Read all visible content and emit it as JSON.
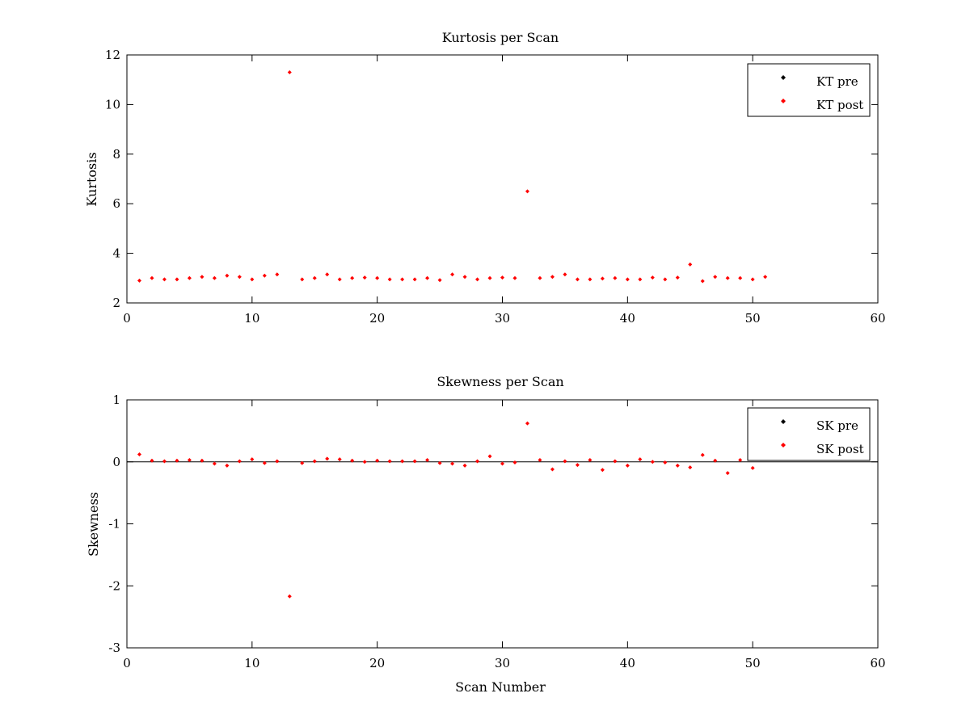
{
  "colors": {
    "pre": "#000000",
    "post": "#ff0000",
    "axes": "#000000",
    "background": "#ffffff"
  },
  "chart_data": [
    {
      "type": "scatter",
      "title": "Kurtosis per Scan",
      "xlabel": "",
      "ylabel": "Kurtosis",
      "xlim": [
        0,
        60
      ],
      "ylim": [
        2,
        12
      ],
      "xticks": [
        0,
        10,
        20,
        30,
        40,
        50,
        60
      ],
      "yticks": [
        2,
        4,
        6,
        8,
        10,
        12
      ],
      "grid": false,
      "legend_position": "top-right",
      "series": [
        {
          "name": "KT pre",
          "color": "#000000",
          "x": [],
          "y": []
        },
        {
          "name": "KT post",
          "color": "#ff0000",
          "x": [
            1,
            2,
            3,
            4,
            5,
            6,
            7,
            8,
            9,
            10,
            11,
            12,
            13,
            14,
            15,
            16,
            17,
            18,
            19,
            20,
            21,
            22,
            23,
            24,
            25,
            26,
            27,
            28,
            29,
            30,
            31,
            32,
            33,
            34,
            35,
            36,
            37,
            38,
            39,
            40,
            41,
            42,
            43,
            44,
            45,
            46,
            47,
            48,
            49,
            50,
            51
          ],
          "y": [
            2.9,
            3.0,
            2.95,
            2.95,
            3.0,
            3.05,
            3.0,
            3.1,
            3.05,
            2.95,
            3.1,
            3.15,
            11.3,
            2.95,
            3.0,
            3.15,
            2.95,
            3.0,
            3.02,
            3.0,
            2.95,
            2.95,
            2.95,
            3.0,
            2.92,
            3.15,
            3.05,
            2.95,
            3.0,
            3.02,
            3.0,
            6.5,
            3.0,
            3.05,
            3.15,
            2.95,
            2.95,
            2.98,
            3.0,
            2.95,
            2.95,
            3.02,
            2.95,
            3.02,
            3.55,
            2.88,
            3.05,
            3.0,
            3.0,
            2.95,
            3.05
          ]
        }
      ]
    },
    {
      "type": "scatter",
      "title": "Skewness per Scan",
      "xlabel": "Scan Number",
      "ylabel": "Skewness",
      "xlim": [
        0,
        60
      ],
      "ylim": [
        -3,
        1
      ],
      "xticks": [
        0,
        10,
        20,
        30,
        40,
        50,
        60
      ],
      "yticks": [
        -3,
        -2,
        -1,
        0,
        1
      ],
      "grid": false,
      "zero_line": true,
      "legend_position": "top-right",
      "series": [
        {
          "name": "SK pre",
          "color": "#000000",
          "x": [],
          "y": []
        },
        {
          "name": "SK post",
          "color": "#ff0000",
          "x": [
            1,
            2,
            3,
            4,
            5,
            6,
            7,
            8,
            9,
            10,
            11,
            12,
            13,
            14,
            15,
            16,
            17,
            18,
            19,
            20,
            21,
            22,
            23,
            24,
            25,
            26,
            27,
            28,
            29,
            30,
            31,
            32,
            33,
            34,
            35,
            36,
            37,
            38,
            39,
            40,
            41,
            42,
            43,
            44,
            45,
            46,
            47,
            48,
            49,
            50
          ],
          "y": [
            0.12,
            0.02,
            0.01,
            0.02,
            0.03,
            0.02,
            -0.03,
            -0.06,
            0.01,
            0.04,
            -0.02,
            0.01,
            -2.17,
            -0.02,
            0.01,
            0.05,
            0.04,
            0.02,
            0.0,
            0.02,
            0.01,
            0.01,
            0.01,
            0.03,
            -0.02,
            -0.03,
            -0.06,
            0.01,
            0.09,
            -0.03,
            -0.01,
            0.62,
            0.03,
            -0.12,
            0.01,
            -0.05,
            0.03,
            -0.13,
            0.01,
            -0.06,
            0.04,
            0.0,
            -0.01,
            -0.06,
            -0.09,
            0.11,
            0.02,
            -0.18,
            0.03,
            -0.1
          ]
        }
      ]
    }
  ]
}
